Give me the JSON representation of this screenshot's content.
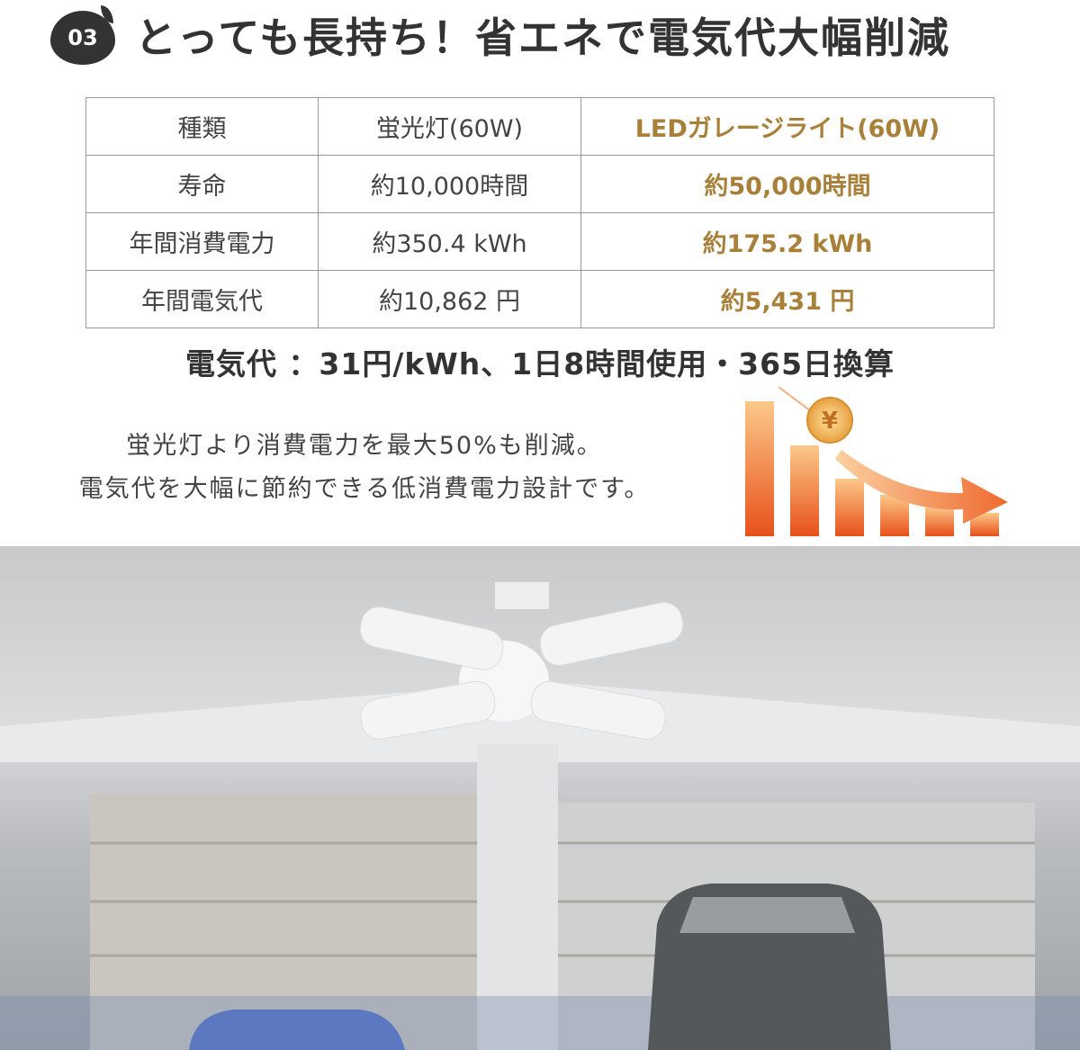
{
  "header": {
    "badge": "03",
    "title": "とっても長持ち！省エネで電気代大幅削減"
  },
  "table": {
    "rows": [
      [
        "種類",
        "蛍光灯(60W)",
        "LEDガレージライト(60W)"
      ],
      [
        "寿命",
        "約10,000時間",
        "約50,000時間"
      ],
      [
        "年間消費電力",
        "約350.4 kWh",
        "約175.2 kWh"
      ],
      [
        "年間電気代",
        "約10,862 円",
        "約5,431 円"
      ]
    ]
  },
  "note": "電気代 ：31円/kWh、1日8時間使用・365日換算",
  "description": {
    "line1": "蛍光灯より消費電力を最大50%も削減。",
    "line2": "電気代を大幅に節約できる低消費電力設計です。"
  },
  "colors": {
    "accent_gold": "#a8803a",
    "chart_orange": "#e85a1e",
    "dark": "#333333"
  },
  "icons": {
    "chart": "decreasing-bar-chart-with-yen-coin-icon"
  }
}
